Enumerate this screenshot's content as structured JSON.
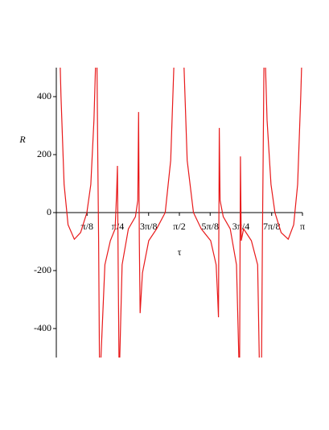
{
  "chart_data": {
    "type": "line",
    "x_label": "τ",
    "y_label": "R",
    "xlim": [
      0,
      3.1416
    ],
    "ylim": [
      -500,
      500
    ],
    "xticks": [
      {
        "value": 0.3927,
        "label": "π/8"
      },
      {
        "value": 0.7854,
        "label": "π/4"
      },
      {
        "value": 1.1781,
        "label": "3π/8"
      },
      {
        "value": 1.5708,
        "label": "π/2"
      },
      {
        "value": 1.9635,
        "label": "5π/8"
      },
      {
        "value": 2.3562,
        "label": "3π/4"
      },
      {
        "value": 2.7489,
        "label": "7π/8"
      },
      {
        "value": 3.1416,
        "label": "π"
      }
    ],
    "yticks": [
      -400,
      -200,
      0,
      200,
      400
    ],
    "series": [
      {
        "name": "R",
        "color": "#e8191a",
        "x": [
          0.05,
          0.06,
          0.1,
          0.15,
          0.23,
          0.31,
          0.39,
          0.44,
          0.48,
          0.5,
          0.51,
          0.52,
          0.53,
          0.54,
          0.55,
          0.56,
          0.57,
          0.62,
          0.69,
          0.75,
          0.77,
          0.78,
          0.79,
          0.8,
          0.805,
          0.81,
          0.84,
          0.92,
          1.01,
          1.04,
          1.05,
          1.06,
          1.07,
          1.1,
          1.18,
          1.28,
          1.39,
          1.46,
          1.5,
          1.57,
          1.63,
          1.67,
          1.75,
          1.85,
          1.97,
          2.04,
          2.06,
          2.07,
          2.08,
          2.09,
          2.13,
          2.22,
          2.3,
          2.33,
          2.335,
          2.34,
          2.35,
          2.36,
          2.39,
          2.49,
          2.57,
          2.59,
          2.6,
          2.62,
          2.63,
          2.64,
          2.65,
          2.66,
          2.67,
          2.69,
          2.74,
          2.79,
          2.87,
          2.96,
          3.03,
          3.08,
          3.12,
          3.13
        ],
        "values": [
          500,
          403,
          97,
          -42,
          -92,
          -69,
          0,
          97,
          319,
          500,
          null,
          500,
          180,
          -97,
          -500,
          null,
          -500,
          -180,
          -97,
          -56,
          69,
          161,
          -180,
          -500,
          null,
          -500,
          -180,
          -56,
          -14,
          42,
          347,
          -97,
          -347,
          -208,
          -97,
          -56,
          0,
          180,
          500,
          null,
          500,
          180,
          0,
          -56,
          -97,
          -180,
          -292,
          -361,
          292,
          42,
          -14,
          -56,
          -180,
          -500,
          null,
          -500,
          194,
          -97,
          -56,
          -97,
          -180,
          -500,
          null,
          -500,
          -97,
          180,
          500,
          null,
          500,
          319,
          97,
          0,
          -69,
          -92,
          -42,
          97,
          403,
          500
        ]
      }
    ]
  }
}
